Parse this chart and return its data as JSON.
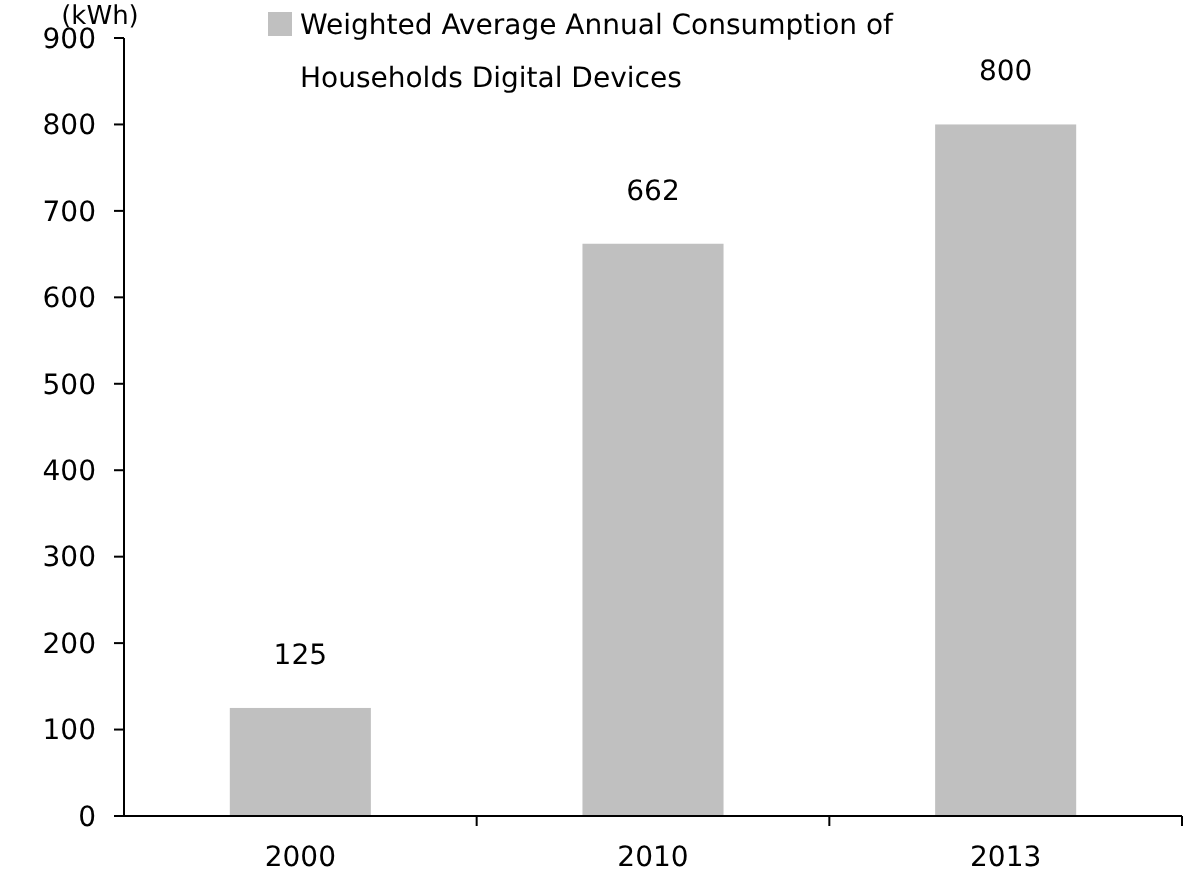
{
  "chart_data": {
    "type": "bar",
    "ylabel": "(kWh)",
    "categories": [
      "2000",
      "2010",
      "2013"
    ],
    "series": [
      {
        "name": "Weighted Average Annual Consumption of Households Digital Devices",
        "color": "#c0c0c0",
        "values": [
          125,
          662,
          800
        ]
      }
    ],
    "ylim": [
      0,
      900
    ],
    "yticks": [
      0,
      100,
      200,
      300,
      400,
      500,
      600,
      700,
      800,
      900
    ],
    "data_labels": true,
    "legend": "top",
    "grid": false
  }
}
